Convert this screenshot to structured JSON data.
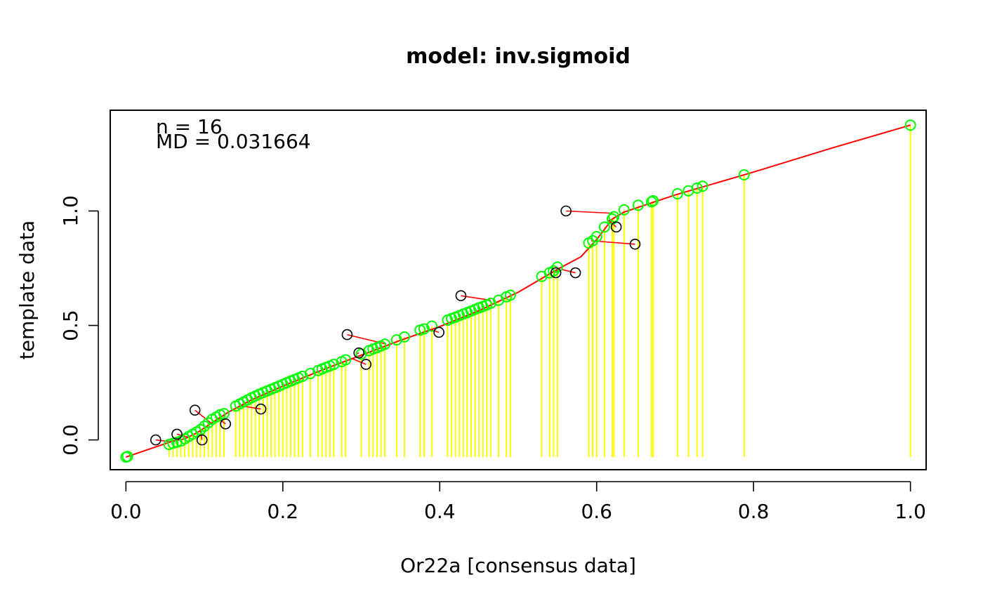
{
  "chart_data": {
    "type": "scatter",
    "title": "model: inv.sigmoid",
    "xlabel": "Or22a [consensus data]",
    "ylabel": "template data",
    "xlim": [
      -0.02,
      1.02
    ],
    "ylim": [
      -0.13,
      1.44
    ],
    "x_ticks": [
      0.0,
      0.2,
      0.4,
      0.6,
      0.8,
      1.0
    ],
    "x_tick_labels": [
      "0.0",
      "0.2",
      "0.4",
      "0.6",
      "0.8",
      "1.0"
    ],
    "y_ticks": [
      0.0,
      0.5,
      1.0
    ],
    "y_tick_labels": [
      "0.0",
      "0.5",
      "1.0"
    ],
    "grid": false,
    "annotations": [
      "n = 16",
      "MD = 0.031664"
    ],
    "colors": {
      "model_curve": "#ff0000",
      "residual_lines": "#ff0000",
      "template_points": "#00ff00",
      "drop_lines": "#ffff00",
      "observed_points": "#000000"
    },
    "model_curve": {
      "name": "model fit",
      "points": [
        [
          0.0,
          -0.075
        ],
        [
          0.03,
          -0.04
        ],
        [
          0.06,
          -0.005
        ],
        [
          0.075,
          0.005
        ],
        [
          0.09,
          0.03
        ],
        [
          0.11,
          0.075
        ],
        [
          0.13,
          0.12
        ],
        [
          0.16,
          0.175
        ],
        [
          0.2,
          0.235
        ],
        [
          0.25,
          0.305
        ],
        [
          0.3,
          0.37
        ],
        [
          0.35,
          0.435
        ],
        [
          0.4,
          0.495
        ],
        [
          0.45,
          0.565
        ],
        [
          0.5,
          0.645
        ],
        [
          0.55,
          0.745
        ],
        [
          0.58,
          0.8
        ],
        [
          0.6,
          0.875
        ],
        [
          0.62,
          0.965
        ],
        [
          0.635,
          0.995
        ],
        [
          0.7,
          1.07
        ],
        [
          0.8,
          1.17
        ],
        [
          0.9,
          1.275
        ],
        [
          1.0,
          1.375
        ]
      ]
    },
    "template_points": {
      "name": "template",
      "x": [
        0.0,
        0.002,
        0.055,
        0.06,
        0.065,
        0.07,
        0.075,
        0.08,
        0.085,
        0.09,
        0.095,
        0.1,
        0.105,
        0.11,
        0.115,
        0.12,
        0.125,
        0.14,
        0.145,
        0.15,
        0.155,
        0.16,
        0.165,
        0.17,
        0.175,
        0.18,
        0.185,
        0.19,
        0.195,
        0.2,
        0.205,
        0.21,
        0.215,
        0.22,
        0.225,
        0.235,
        0.245,
        0.25,
        0.255,
        0.26,
        0.265,
        0.275,
        0.28,
        0.3,
        0.31,
        0.315,
        0.32,
        0.325,
        0.33,
        0.345,
        0.355,
        0.375,
        0.38,
        0.39,
        0.41,
        0.415,
        0.42,
        0.425,
        0.43,
        0.435,
        0.44,
        0.445,
        0.45,
        0.455,
        0.46,
        0.465,
        0.475,
        0.485,
        0.49,
        0.53,
        0.54,
        0.545,
        0.55,
        0.59,
        0.595,
        0.6,
        0.61,
        0.62,
        0.622,
        0.635,
        0.653,
        0.67,
        0.672,
        0.703,
        0.717,
        0.728,
        0.735,
        0.788,
        1.0
      ],
      "y": [
        -0.075,
        -0.072,
        -0.02,
        -0.015,
        -0.01,
        -0.005,
        0.005,
        0.015,
        0.025,
        0.035,
        0.045,
        0.06,
        0.075,
        0.09,
        0.1,
        0.11,
        0.115,
        0.148,
        0.157,
        0.166,
        0.175,
        0.184,
        0.192,
        0.2,
        0.207,
        0.214,
        0.221,
        0.228,
        0.235,
        0.243,
        0.25,
        0.257,
        0.264,
        0.271,
        0.278,
        0.29,
        0.303,
        0.31,
        0.317,
        0.323,
        0.33,
        0.342,
        0.35,
        0.375,
        0.39,
        0.397,
        0.403,
        0.41,
        0.418,
        0.437,
        0.45,
        0.48,
        0.485,
        0.497,
        0.523,
        0.53,
        0.536,
        0.543,
        0.55,
        0.556,
        0.563,
        0.57,
        0.577,
        0.583,
        0.59,
        0.597,
        0.61,
        0.625,
        0.632,
        0.714,
        0.73,
        0.738,
        0.755,
        0.86,
        0.87,
        0.888,
        0.93,
        0.965,
        0.975,
        1.005,
        1.025,
        1.04,
        1.045,
        1.075,
        1.088,
        1.1,
        1.108,
        1.158,
        1.375
      ]
    },
    "observed_points": {
      "name": "observed",
      "x": [
        0.038,
        0.065,
        0.088,
        0.097,
        0.127,
        0.172,
        0.282,
        0.297,
        0.306,
        0.399,
        0.427,
        0.548,
        0.573,
        0.561,
        0.625,
        0.649
      ],
      "y": [
        0.0,
        0.025,
        0.13,
        0.0,
        0.07,
        0.135,
        0.46,
        0.38,
        0.33,
        0.47,
        0.63,
        0.73,
        0.73,
        1.0,
        0.93,
        0.855
      ]
    },
    "residual_targets": {
      "x": [
        0.062,
        0.082,
        0.108,
        0.095,
        0.115,
        0.145,
        0.33,
        0.293,
        0.287,
        0.385,
        0.465,
        0.55,
        0.555,
        0.62,
        0.615,
        0.593
      ],
      "y": [
        -0.01,
        0.01,
        0.075,
        0.04,
        0.1,
        0.15,
        0.42,
        0.375,
        0.357,
        0.485,
        0.61,
        0.745,
        0.745,
        0.99,
        0.96,
        0.87
      ]
    }
  }
}
